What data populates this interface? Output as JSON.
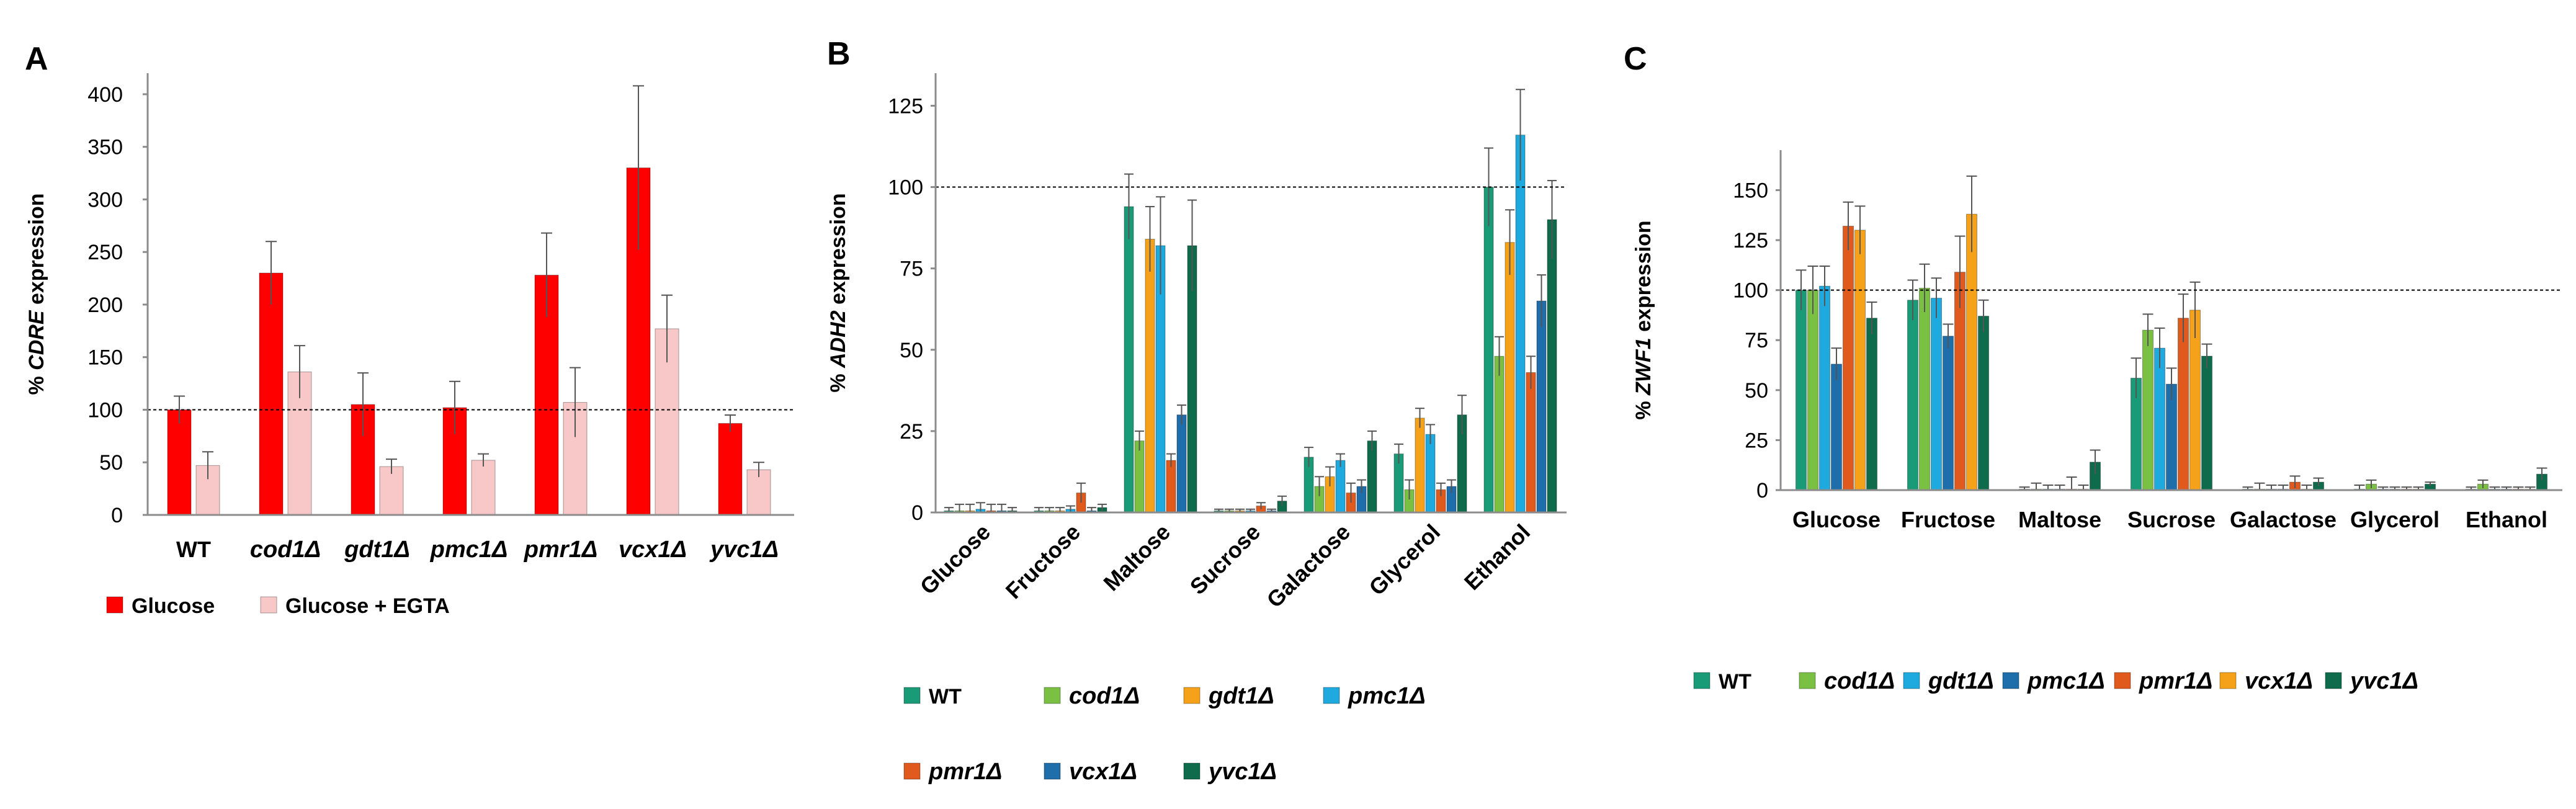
{
  "chart_data": [
    {
      "panel": "A",
      "type": "bar",
      "ylabel_prefix": "% ",
      "ylabel_gene": "CDRE",
      "ylabel_suffix": " expression",
      "ylim": [
        0,
        420
      ],
      "yticks": [
        0,
        50,
        100,
        150,
        200,
        250,
        300,
        350,
        400
      ],
      "reference_line": 100,
      "categories": [
        "WT",
        "cod1Δ",
        "gdt1Δ",
        "pmc1Δ",
        "pmr1Δ",
        "vcx1Δ",
        "yvc1Δ"
      ],
      "series": [
        {
          "name": "Glucose",
          "color": "#ff0000",
          "values": [
            100,
            230,
            105,
            102,
            228,
            330,
            87
          ],
          "errors": [
            13,
            30,
            30,
            25,
            40,
            78,
            8
          ]
        },
        {
          "name": "Glucose + EGTA",
          "color": "#f8c8c8",
          "values": [
            47,
            136,
            46,
            52,
            107,
            177,
            43
          ],
          "errors": [
            13,
            25,
            7,
            6,
            33,
            32,
            7
          ]
        }
      ]
    },
    {
      "panel": "B",
      "type": "bar",
      "ylabel_prefix": "% ",
      "ylabel_gene": "ADH2",
      "ylabel_suffix": " expression",
      "ylim": [
        0,
        135
      ],
      "yticks": [
        0,
        25,
        50,
        75,
        100,
        125
      ],
      "reference_line": 100,
      "categories": [
        "Glucose",
        "Fructose",
        "Maltose",
        "Sucrose",
        "Galactose",
        "Glycerol",
        "Ethanol"
      ],
      "series": [
        {
          "name": "WT",
          "color": "#1a9b78",
          "values": [
            0.5,
            0.5,
            94,
            0.5,
            17,
            18,
            100
          ],
          "errors": [
            1,
            1,
            10,
            0.5,
            3,
            3,
            12
          ]
        },
        {
          "name": "cod1Δ",
          "color": "#7ac143",
          "values": [
            0.5,
            0.5,
            22,
            0.5,
            8,
            7,
            48
          ],
          "errors": [
            2,
            1,
            3,
            0.5,
            3,
            3,
            6
          ]
        },
        {
          "name": "gdt1Δ",
          "color": "#f5a21a",
          "values": [
            0.5,
            0.5,
            84,
            0.5,
            11,
            29,
            83
          ],
          "errors": [
            2,
            1,
            10,
            0.5,
            3,
            3,
            10
          ]
        },
        {
          "name": "pmc1Δ",
          "color": "#1eaadf",
          "values": [
            1,
            1,
            82,
            0.5,
            16,
            24,
            116
          ],
          "errors": [
            2,
            1,
            15,
            0.5,
            2,
            3,
            14
          ]
        },
        {
          "name": "pmr1Δ",
          "color": "#e05a1e",
          "values": [
            0.5,
            6,
            16,
            2,
            6,
            7,
            43
          ],
          "errors": [
            2,
            3,
            2,
            1,
            3,
            2,
            5
          ]
        },
        {
          "name": "vcx1Δ",
          "color": "#1d6eab",
          "values": [
            0.5,
            0.5,
            30,
            0.5,
            8,
            8,
            65
          ],
          "errors": [
            2,
            1,
            3,
            0.5,
            2,
            2,
            8
          ]
        },
        {
          "name": "yvc1Δ",
          "color": "#0e6b4b",
          "values": [
            0.5,
            1.5,
            82,
            3.5,
            22,
            30,
            90
          ],
          "errors": [
            1,
            1,
            14,
            1.5,
            3,
            6,
            12
          ]
        }
      ]
    },
    {
      "panel": "C",
      "type": "bar",
      "ylabel_prefix": "% ",
      "ylabel_gene": "ZWF1",
      "ylabel_suffix": " expression",
      "ylim": [
        0,
        170
      ],
      "yticks": [
        0,
        25,
        50,
        75,
        100,
        125,
        150
      ],
      "reference_line": 100,
      "categories": [
        "Glucose",
        "Fructose",
        "Maltose",
        "Sucrose",
        "Galactose",
        "Glycerol",
        "Ethanol"
      ],
      "series": [
        {
          "name": "WT",
          "color": "#1a9b78",
          "values": [
            100,
            95,
            0.5,
            56,
            0.5,
            0.5,
            0.5
          ],
          "errors": [
            10,
            10,
            1,
            10,
            1,
            2,
            1
          ]
        },
        {
          "name": "cod1Δ",
          "color": "#7ac143",
          "values": [
            100,
            101,
            0.5,
            80,
            0.5,
            3,
            3
          ],
          "errors": [
            12,
            12,
            3,
            8,
            3,
            2,
            2
          ]
        },
        {
          "name": "gdt1Δ",
          "color": "#1eaadf",
          "values": [
            102,
            96,
            0.5,
            71,
            0.5,
            0.5,
            0.5
          ],
          "errors": [
            10,
            10,
            2,
            10,
            2,
            1,
            1
          ]
        },
        {
          "name": "pmc1Δ",
          "color": "#1d6eab",
          "values": [
            63,
            77,
            0.5,
            53,
            0.5,
            0.5,
            0.5
          ],
          "errors": [
            8,
            6,
            2,
            8,
            2,
            1,
            1
          ]
        },
        {
          "name": "pmr1Δ",
          "color": "#e05a1e",
          "values": [
            132,
            109,
            0.5,
            86,
            4,
            0.5,
            0.5
          ],
          "errors": [
            12,
            18,
            6,
            12,
            3,
            1,
            1
          ]
        },
        {
          "name": "vcx1Δ",
          "color": "#f5a21a",
          "values": [
            130,
            138,
            0.5,
            90,
            0.5,
            0.5,
            0.5
          ],
          "errors": [
            12,
            19,
            2,
            14,
            2,
            1,
            1
          ]
        },
        {
          "name": "yvc1Δ",
          "color": "#0e6b4b",
          "values": [
            86,
            87,
            14,
            67,
            4,
            3,
            8
          ],
          "errors": [
            8,
            8,
            6,
            6,
            2,
            1,
            3
          ]
        }
      ]
    }
  ]
}
